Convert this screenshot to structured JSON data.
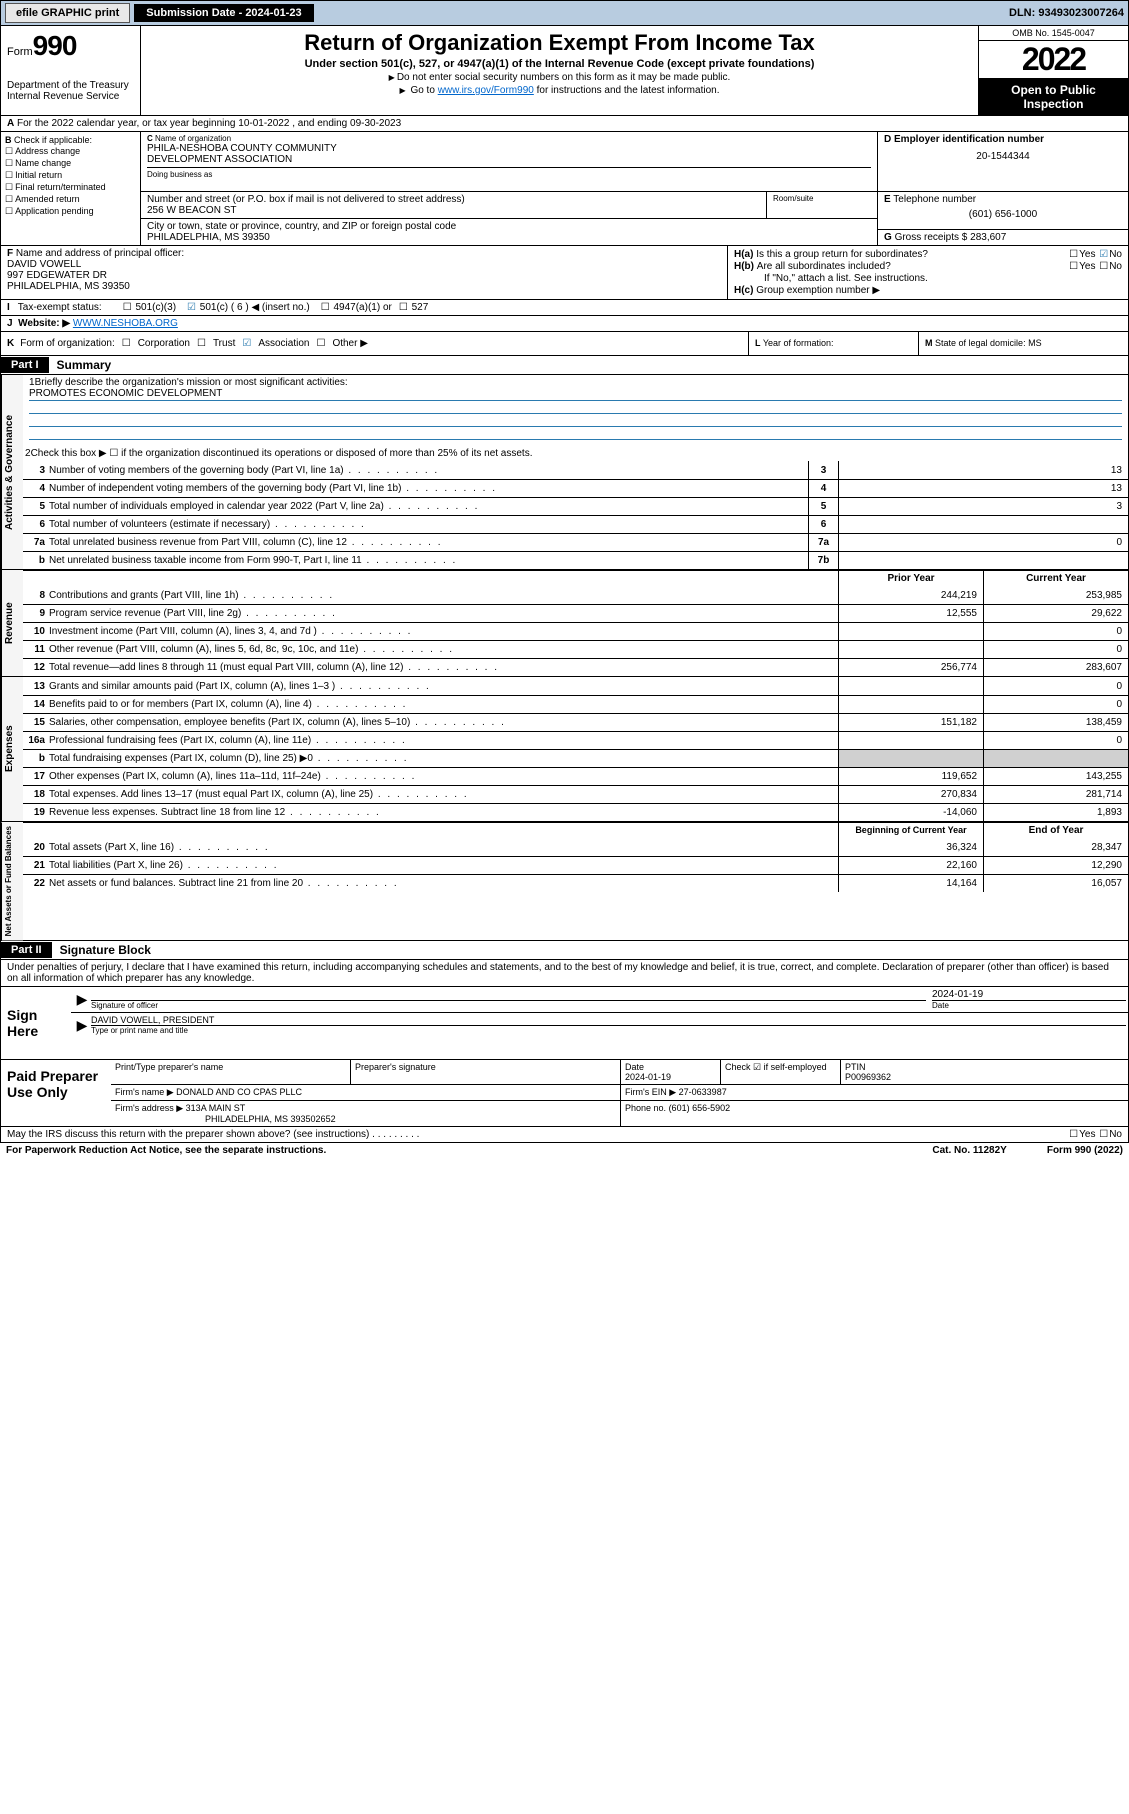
{
  "topbar": {
    "efile": "efile GRAPHIC print",
    "submission_label": "Submission Date - 2024-01-23",
    "dln": "DLN: 93493023007264"
  },
  "header": {
    "form_word": "Form",
    "form_num": "990",
    "dept": "Department of the Treasury",
    "irs": "Internal Revenue Service",
    "title": "Return of Organization Exempt From Income Tax",
    "subtitle": "Under section 501(c), 527, or 4947(a)(1) of the Internal Revenue Code (except private foundations)",
    "note1": "Do not enter social security numbers on this form as it may be made public.",
    "note2_pre": "Go to ",
    "note2_link": "www.irs.gov/Form990",
    "note2_post": " for instructions and the latest information.",
    "omb": "OMB No. 1545-0047",
    "year": "2022",
    "open": "Open to Public Inspection"
  },
  "line_a": "For the 2022 calendar year, or tax year beginning 10-01-2022   , and ending 09-30-2023",
  "box_b": {
    "title": "Check if applicable:",
    "items": [
      "Address change",
      "Name change",
      "Initial return",
      "Final return/terminated",
      "Amended return",
      "Application pending"
    ]
  },
  "box_c": {
    "hint_name": "Name of organization",
    "name1": "PHILA-NESHOBA COUNTY COMMUNITY",
    "name2": "DEVELOPMENT ASSOCIATION",
    "dba_hint": "Doing business as",
    "street_hint": "Number and street (or P.O. box if mail is not delivered to street address)",
    "room_hint": "Room/suite",
    "street": "256 W BEACON ST",
    "city_hint": "City or town, state or province, country, and ZIP or foreign postal code",
    "city": "PHILADELPHIA, MS  39350"
  },
  "box_d": {
    "hint": "Employer identification number",
    "val": "20-1544344"
  },
  "box_e": {
    "hint": "Telephone number",
    "val": "(601) 656-1000"
  },
  "box_g": {
    "label": "Gross receipts $",
    "val": "283,607"
  },
  "box_f": {
    "hint": "Name and address of principal officer:",
    "name": "DAVID VOWELL",
    "addr1": "997 EDGEWATER DR",
    "addr2": "PHILADELPHIA, MS  39350"
  },
  "box_h": {
    "ha_label": "Is this a group return for subordinates?",
    "hb_label": "Are all subordinates included?",
    "hb_note": "If \"No,\" attach a list. See instructions.",
    "hc_label": "Group exemption number ▶"
  },
  "box_i": {
    "label": "Tax-exempt status:",
    "opts": [
      "501(c)(3)",
      "501(c) ( 6 ) ◀ (insert no.)",
      "4947(a)(1) or",
      "527"
    ]
  },
  "box_j": {
    "label": "Website: ▶",
    "val": "WWW.NESHOBA.ORG"
  },
  "box_k": {
    "label": "Form of organization:",
    "opts": [
      "Corporation",
      "Trust",
      "Association",
      "Other ▶"
    ]
  },
  "box_l": "Year of formation:",
  "box_m": "State of legal domicile: MS",
  "part1": {
    "tab": "Part I",
    "title": "Summary",
    "q1": "Briefly describe the organization's mission or most significant activities:",
    "mission": "PROMOTES ECONOMIC DEVELOPMENT",
    "q2": "Check this box ▶ ☐  if the organization discontinued its operations or disposed of more than 25% of its net assets.",
    "rows_gov": [
      {
        "n": "3",
        "t": "Number of voting members of the governing body (Part VI, line 1a)",
        "ref": "3",
        "v": "13"
      },
      {
        "n": "4",
        "t": "Number of independent voting members of the governing body (Part VI, line 1b)",
        "ref": "4",
        "v": "13"
      },
      {
        "n": "5",
        "t": "Total number of individuals employed in calendar year 2022 (Part V, line 2a)",
        "ref": "5",
        "v": "3"
      },
      {
        "n": "6",
        "t": "Total number of volunteers (estimate if necessary)",
        "ref": "6",
        "v": ""
      },
      {
        "n": "7a",
        "t": "Total unrelated business revenue from Part VIII, column (C), line 12",
        "ref": "7a",
        "v": "0"
      },
      {
        "n": "b",
        "t": "Net unrelated business taxable income from Form 990-T, Part I, line 11",
        "ref": "7b",
        "v": ""
      }
    ],
    "hdr_prior": "Prior Year",
    "hdr_curr": "Current Year",
    "rows_rev": [
      {
        "n": "8",
        "t": "Contributions and grants (Part VIII, line 1h)",
        "p": "244,219",
        "c": "253,985"
      },
      {
        "n": "9",
        "t": "Program service revenue (Part VIII, line 2g)",
        "p": "12,555",
        "c": "29,622"
      },
      {
        "n": "10",
        "t": "Investment income (Part VIII, column (A), lines 3, 4, and 7d )",
        "p": "",
        "c": "0"
      },
      {
        "n": "11",
        "t": "Other revenue (Part VIII, column (A), lines 5, 6d, 8c, 9c, 10c, and 11e)",
        "p": "",
        "c": "0"
      },
      {
        "n": "12",
        "t": "Total revenue—add lines 8 through 11 (must equal Part VIII, column (A), line 12)",
        "p": "256,774",
        "c": "283,607"
      }
    ],
    "rows_exp": [
      {
        "n": "13",
        "t": "Grants and similar amounts paid (Part IX, column (A), lines 1–3 )",
        "p": "",
        "c": "0"
      },
      {
        "n": "14",
        "t": "Benefits paid to or for members (Part IX, column (A), line 4)",
        "p": "",
        "c": "0"
      },
      {
        "n": "15",
        "t": "Salaries, other compensation, employee benefits (Part IX, column (A), lines 5–10)",
        "p": "151,182",
        "c": "138,459"
      },
      {
        "n": "16a",
        "t": "Professional fundraising fees (Part IX, column (A), line 11e)",
        "p": "",
        "c": "0"
      },
      {
        "n": "b",
        "t": "Total fundraising expenses (Part IX, column (D), line 25) ▶0",
        "p": "grey",
        "c": "grey"
      },
      {
        "n": "17",
        "t": "Other expenses (Part IX, column (A), lines 11a–11d, 11f–24e)",
        "p": "119,652",
        "c": "143,255"
      },
      {
        "n": "18",
        "t": "Total expenses. Add lines 13–17 (must equal Part IX, column (A), line 25)",
        "p": "270,834",
        "c": "281,714"
      },
      {
        "n": "19",
        "t": "Revenue less expenses. Subtract line 18 from line 12",
        "p": "-14,060",
        "c": "1,893"
      }
    ],
    "hdr_beg": "Beginning of Current Year",
    "hdr_end": "End of Year",
    "rows_net": [
      {
        "n": "20",
        "t": "Total assets (Part X, line 16)",
        "p": "36,324",
        "c": "28,347"
      },
      {
        "n": "21",
        "t": "Total liabilities (Part X, line 26)",
        "p": "22,160",
        "c": "12,290"
      },
      {
        "n": "22",
        "t": "Net assets or fund balances. Subtract line 21 from line 20",
        "p": "14,164",
        "c": "16,057"
      }
    ]
  },
  "part2": {
    "tab": "Part II",
    "title": "Signature Block",
    "decl": "Under penalties of perjury, I declare that I have examined this return, including accompanying schedules and statements, and to the best of my knowledge and belief, it is true, correct, and complete. Declaration of preparer (other than officer) is based on all information of which preparer has any knowledge.",
    "sign_here": "Sign Here",
    "sig_officer": "Signature of officer",
    "sig_date": "2024-01-19",
    "date_lbl": "Date",
    "officer_name": "DAVID VOWELL, PRESIDENT",
    "type_name": "Type or print name and title",
    "paid_prep": "Paid Preparer Use Only",
    "prep_hdr": [
      "Print/Type preparer's name",
      "Preparer's signature",
      "Date",
      "Check ☑ if self-employed",
      "PTIN"
    ],
    "prep_date": "2024-01-19",
    "ptin": "P00969362",
    "firm_name_lbl": "Firm's name    ▶",
    "firm_name": "DONALD AND CO CPAS PLLC",
    "firm_ein_lbl": "Firm's EIN ▶",
    "firm_ein": "27-0633987",
    "firm_addr_lbl": "Firm's address ▶",
    "firm_addr1": "313A MAIN ST",
    "firm_addr2": "PHILADELPHIA, MS  393502652",
    "phone_lbl": "Phone no.",
    "phone": "(601) 656-5902",
    "discuss": "May the IRS discuss this return with the preparer shown above? (see instructions)"
  },
  "footer": {
    "left": "For Paperwork Reduction Act Notice, see the separate instructions.",
    "mid": "Cat. No. 11282Y",
    "right": "Form 990 (2022)"
  }
}
